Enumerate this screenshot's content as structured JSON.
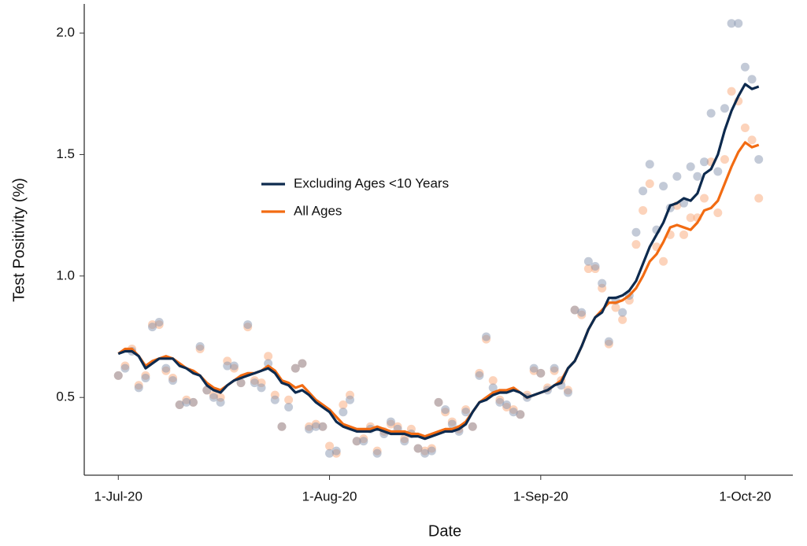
{
  "chart_data": {
    "type": "line",
    "xlabel": "Date",
    "ylabel": "Test Positivity (%)",
    "x": [
      "2020-07-01",
      "2020-07-02",
      "2020-07-03",
      "2020-07-04",
      "2020-07-05",
      "2020-07-06",
      "2020-07-07",
      "2020-07-08",
      "2020-07-09",
      "2020-07-10",
      "2020-07-11",
      "2020-07-12",
      "2020-07-13",
      "2020-07-14",
      "2020-07-15",
      "2020-07-16",
      "2020-07-17",
      "2020-07-18",
      "2020-07-19",
      "2020-07-20",
      "2020-07-21",
      "2020-07-22",
      "2020-07-23",
      "2020-07-24",
      "2020-07-25",
      "2020-07-26",
      "2020-07-27",
      "2020-07-28",
      "2020-07-29",
      "2020-07-30",
      "2020-07-31",
      "2020-08-01",
      "2020-08-02",
      "2020-08-03",
      "2020-08-04",
      "2020-08-05",
      "2020-08-06",
      "2020-08-07",
      "2020-08-08",
      "2020-08-09",
      "2020-08-10",
      "2020-08-11",
      "2020-08-12",
      "2020-08-13",
      "2020-08-14",
      "2020-08-15",
      "2020-08-16",
      "2020-08-17",
      "2020-08-18",
      "2020-08-19",
      "2020-08-20",
      "2020-08-21",
      "2020-08-22",
      "2020-08-23",
      "2020-08-24",
      "2020-08-25",
      "2020-08-26",
      "2020-08-27",
      "2020-08-28",
      "2020-08-29",
      "2020-08-30",
      "2020-08-31",
      "2020-09-01",
      "2020-09-02",
      "2020-09-03",
      "2020-09-04",
      "2020-09-05",
      "2020-09-06",
      "2020-09-07",
      "2020-09-08",
      "2020-09-09",
      "2020-09-10",
      "2020-09-11",
      "2020-09-12",
      "2020-09-13",
      "2020-09-14",
      "2020-09-15",
      "2020-09-16",
      "2020-09-17",
      "2020-09-18",
      "2020-09-19",
      "2020-09-20",
      "2020-09-21",
      "2020-09-22",
      "2020-09-23",
      "2020-09-24",
      "2020-09-25",
      "2020-09-26",
      "2020-09-27",
      "2020-09-28",
      "2020-09-29",
      "2020-09-30",
      "2020-10-01",
      "2020-10-02",
      "2020-10-03"
    ],
    "series": [
      {
        "name": "Excluding Ages <10 Years",
        "color": "#0d2a4e",
        "point_color": "#8795b0",
        "values": [
          0.68,
          0.69,
          0.69,
          0.67,
          0.62,
          0.64,
          0.66,
          0.66,
          0.66,
          0.63,
          0.62,
          0.6,
          0.59,
          0.55,
          0.53,
          0.52,
          0.55,
          0.57,
          0.58,
          0.59,
          0.6,
          0.61,
          0.62,
          0.6,
          0.56,
          0.55,
          0.52,
          0.53,
          0.51,
          0.48,
          0.46,
          0.44,
          0.4,
          0.38,
          0.37,
          0.36,
          0.36,
          0.36,
          0.37,
          0.36,
          0.35,
          0.35,
          0.35,
          0.34,
          0.34,
          0.33,
          0.34,
          0.35,
          0.36,
          0.36,
          0.37,
          0.39,
          0.44,
          0.48,
          0.49,
          0.51,
          0.52,
          0.52,
          0.53,
          0.52,
          0.5,
          0.51,
          0.52,
          0.53,
          0.55,
          0.56,
          0.62,
          0.65,
          0.71,
          0.78,
          0.83,
          0.85,
          0.91,
          0.91,
          0.92,
          0.94,
          0.98,
          1.05,
          1.12,
          1.17,
          1.22,
          1.29,
          1.3,
          1.32,
          1.31,
          1.34,
          1.42,
          1.44,
          1.5,
          1.6,
          1.68,
          1.74,
          1.79,
          1.77,
          1.78
        ],
        "points": [
          0.59,
          0.62,
          0.69,
          0.54,
          0.58,
          0.79,
          0.81,
          0.62,
          0.57,
          0.47,
          0.48,
          0.48,
          0.71,
          0.53,
          0.5,
          0.48,
          0.63,
          0.63,
          0.56,
          0.8,
          0.56,
          0.54,
          0.64,
          0.49,
          0.38,
          0.46,
          0.62,
          0.64,
          0.37,
          0.38,
          0.38,
          0.27,
          0.28,
          0.44,
          0.49,
          0.32,
          0.32,
          0.37,
          0.27,
          0.35,
          0.4,
          0.37,
          0.32,
          0.35,
          0.29,
          0.27,
          0.28,
          0.48,
          0.45,
          0.39,
          0.36,
          0.44,
          0.38,
          0.59,
          0.75,
          0.54,
          0.48,
          0.47,
          0.44,
          0.43,
          0.5,
          0.62,
          0.6,
          0.53,
          0.62,
          0.55,
          0.52,
          0.86,
          0.85,
          1.06,
          1.04,
          0.97,
          0.73,
          0.9,
          0.85,
          0.92,
          1.18,
          1.35,
          1.46,
          1.19,
          1.37,
          1.28,
          1.41,
          1.3,
          1.45,
          1.41,
          1.47,
          1.67,
          1.43,
          1.69,
          2.04,
          2.04,
          1.86,
          1.81,
          1.48
        ]
      },
      {
        "name": "All Ages",
        "color": "#f26b12",
        "point_color": "#f9a878",
        "values": [
          0.68,
          0.7,
          0.7,
          0.67,
          0.63,
          0.65,
          0.66,
          0.67,
          0.66,
          0.64,
          0.62,
          0.61,
          0.59,
          0.56,
          0.54,
          0.53,
          0.55,
          0.57,
          0.59,
          0.6,
          0.6,
          0.61,
          0.63,
          0.61,
          0.57,
          0.56,
          0.54,
          0.55,
          0.52,
          0.49,
          0.47,
          0.45,
          0.42,
          0.39,
          0.38,
          0.37,
          0.37,
          0.37,
          0.38,
          0.37,
          0.36,
          0.36,
          0.36,
          0.35,
          0.35,
          0.34,
          0.35,
          0.36,
          0.37,
          0.37,
          0.38,
          0.4,
          0.44,
          0.48,
          0.5,
          0.52,
          0.53,
          0.53,
          0.54,
          0.52,
          0.5,
          0.51,
          0.52,
          0.53,
          0.55,
          0.57,
          0.62,
          0.65,
          0.71,
          0.78,
          0.83,
          0.86,
          0.89,
          0.89,
          0.9,
          0.92,
          0.95,
          1.0,
          1.06,
          1.09,
          1.14,
          1.2,
          1.21,
          1.2,
          1.19,
          1.22,
          1.27,
          1.28,
          1.31,
          1.38,
          1.45,
          1.51,
          1.55,
          1.53,
          1.54
        ],
        "points": [
          0.59,
          0.63,
          0.7,
          0.55,
          0.59,
          0.8,
          0.8,
          0.61,
          0.58,
          0.47,
          0.49,
          0.48,
          0.7,
          0.53,
          0.51,
          0.5,
          0.65,
          0.62,
          0.56,
          0.79,
          0.57,
          0.56,
          0.67,
          0.51,
          0.38,
          0.49,
          0.62,
          0.64,
          0.38,
          0.39,
          0.38,
          0.3,
          0.27,
          0.47,
          0.51,
          0.32,
          0.33,
          0.38,
          0.28,
          0.36,
          0.39,
          0.38,
          0.33,
          0.37,
          0.29,
          0.28,
          0.29,
          0.48,
          0.44,
          0.4,
          0.37,
          0.45,
          0.38,
          0.6,
          0.74,
          0.57,
          0.49,
          0.46,
          0.45,
          0.43,
          0.51,
          0.61,
          0.6,
          0.54,
          0.61,
          0.57,
          0.53,
          0.86,
          0.84,
          1.03,
          1.03,
          0.95,
          0.72,
          0.87,
          0.82,
          0.9,
          1.13,
          1.27,
          1.38,
          1.12,
          1.06,
          1.17,
          1.29,
          1.17,
          1.24,
          1.24,
          1.32,
          1.47,
          1.26,
          1.48,
          1.76,
          1.72,
          1.61,
          1.56,
          1.32
        ]
      }
    ],
    "xlim": [
      "2020-06-26",
      "2020-10-08"
    ],
    "xticks": [
      {
        "value": "2020-07-01",
        "label": "1-Jul-20"
      },
      {
        "value": "2020-08-01",
        "label": "1-Aug-20"
      },
      {
        "value": "2020-09-01",
        "label": "1-Sep-20"
      },
      {
        "value": "2020-10-01",
        "label": "1-Oct-20"
      }
    ],
    "ylim": [
      0.18,
      2.12
    ],
    "yticks": [
      0.5,
      {
        "value": 1,
        "label": "1.0"
      },
      1.5,
      {
        "value": 2,
        "label": "2.0"
      }
    ],
    "grid": false
  }
}
